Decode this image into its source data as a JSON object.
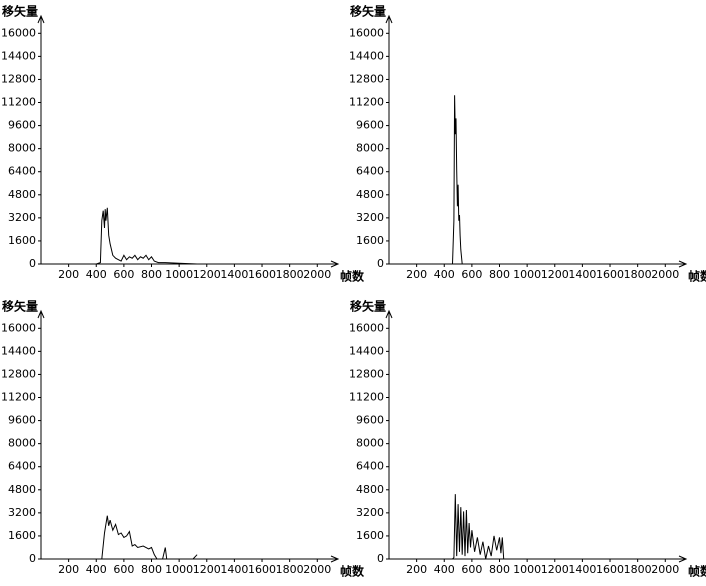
{
  "chart_data": [
    {
      "type": "line",
      "y_label": "移矢量",
      "x_label": "帧数",
      "color": "#000000",
      "xlim": [
        0,
        2150
      ],
      "ylim": [
        0,
        17200
      ],
      "xticks": [
        200,
        400,
        600,
        800,
        1000,
        1200,
        1400,
        1600,
        1800,
        2000
      ],
      "yticks": [
        0,
        1600,
        3200,
        4800,
        6400,
        8000,
        9600,
        11200,
        12800,
        14400,
        16000
      ],
      "x": [
        0,
        400,
        430,
        440,
        450,
        460,
        465,
        470,
        480,
        490,
        500,
        520,
        540,
        560,
        580,
        600,
        620,
        640,
        660,
        680,
        700,
        720,
        740,
        760,
        780,
        800,
        820,
        850,
        900,
        1000,
        1130
      ],
      "values": [
        0,
        0,
        100,
        3000,
        3700,
        2500,
        3800,
        3000,
        3900,
        2000,
        1400,
        600,
        400,
        300,
        200,
        600,
        300,
        500,
        400,
        600,
        300,
        500,
        400,
        600,
        300,
        500,
        200,
        100,
        100,
        50,
        0
      ]
    },
    {
      "type": "line",
      "y_label": "移矢量",
      "x_label": "帧数",
      "color": "#000000",
      "xlim": [
        0,
        2150
      ],
      "ylim": [
        0,
        17200
      ],
      "xticks": [
        200,
        400,
        600,
        800,
        1000,
        1200,
        1400,
        1600,
        1800,
        2000
      ],
      "yticks": [
        0,
        1600,
        3200,
        4800,
        6400,
        8000,
        9600,
        11200,
        12800,
        14400,
        16000
      ],
      "x": [
        0,
        440,
        460,
        470,
        475,
        480,
        485,
        490,
        495,
        500,
        505,
        510,
        515,
        520,
        530,
        540,
        1130
      ],
      "values": [
        0,
        0,
        0,
        3000,
        11700,
        9000,
        10100,
        6500,
        4000,
        5500,
        3000,
        3400,
        2000,
        1000,
        0,
        0,
        0
      ]
    },
    {
      "type": "line",
      "y_label": "移矢量",
      "x_label": "帧数",
      "color": "#000000",
      "xlim": [
        0,
        2150
      ],
      "ylim": [
        0,
        17200
      ],
      "xticks": [
        200,
        400,
        600,
        800,
        1000,
        1200,
        1400,
        1600,
        1800,
        2000
      ],
      "yticks": [
        0,
        1600,
        3200,
        4800,
        6400,
        8000,
        9600,
        11200,
        12800,
        14400,
        16000
      ],
      "x": [
        0,
        440,
        460,
        480,
        490,
        500,
        520,
        540,
        560,
        580,
        600,
        620,
        640,
        660,
        680,
        700,
        740,
        780,
        800,
        820,
        840,
        860,
        880,
        900,
        910,
        930,
        1100,
        1130
      ],
      "values": [
        0,
        0,
        1800,
        3000,
        2300,
        2700,
        2000,
        2400,
        1700,
        1800,
        1500,
        1600,
        1900,
        900,
        1000,
        800,
        900,
        700,
        800,
        300,
        0,
        0,
        0,
        800,
        0,
        0,
        0,
        300
      ]
    },
    {
      "type": "line",
      "y_label": "移矢量",
      "x_label": "帧数",
      "color": "#000000",
      "xlim": [
        0,
        2150
      ],
      "ylim": [
        0,
        17200
      ],
      "xticks": [
        200,
        400,
        600,
        800,
        1000,
        1200,
        1400,
        1600,
        1800,
        2000
      ],
      "yticks": [
        0,
        1600,
        3200,
        4800,
        6400,
        8000,
        9600,
        11200,
        12800,
        14400,
        16000
      ],
      "x": [
        0,
        460,
        470,
        480,
        490,
        500,
        510,
        520,
        530,
        540,
        550,
        560,
        570,
        580,
        590,
        600,
        620,
        640,
        660,
        680,
        700,
        720,
        740,
        760,
        780,
        800,
        810,
        820,
        830,
        1130
      ],
      "values": [
        0,
        0,
        100,
        4500,
        200,
        3800,
        500,
        3600,
        300,
        3300,
        200,
        3400,
        400,
        2500,
        800,
        2000,
        500,
        1500,
        300,
        1200,
        0,
        900,
        200,
        1600,
        600,
        1500,
        400,
        1500,
        0,
        0
      ]
    }
  ]
}
